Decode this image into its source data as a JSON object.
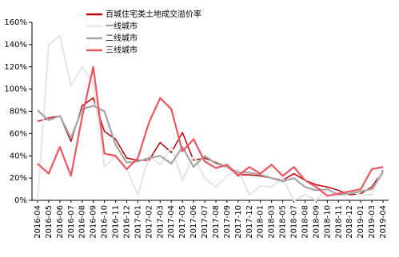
{
  "chart_data": {
    "type": "line",
    "categories": [
      "2016-04",
      "2016-05",
      "2016-06",
      "2016-07",
      "2016-08",
      "2016-09",
      "2016-10",
      "2016-11",
      "2016-12",
      "2017-01",
      "2017-02",
      "2017-03",
      "2017-04",
      "2017-05",
      "2017-06",
      "2017-07",
      "2017-08",
      "2017-09",
      "2017-10",
      "2017-12",
      "2018-01",
      "2018-03",
      "2018-05",
      "2018-07",
      "2018-08",
      "2018-09",
      "2018-10",
      "2018-11",
      "2018-12",
      "2019-01",
      "2019-03",
      "2019-04"
    ],
    "series": [
      {
        "name": "百城住宅类土地成交溢价率",
        "color": "#c00000",
        "values": [
          71,
          74,
          76,
          53,
          85,
          92,
          62,
          55,
          38,
          36,
          36,
          52,
          43,
          61,
          36,
          38,
          34,
          30,
          23,
          23,
          22,
          20,
          18,
          24,
          18,
          14,
          12,
          9,
          5,
          6,
          12,
          27
        ]
      },
      {
        "name": "一线城市",
        "color": "#e6e6e6",
        "values": [
          0,
          140,
          148,
          103,
          120,
          105,
          30,
          40,
          28,
          5,
          40,
          32,
          48,
          18,
          40,
          20,
          12,
          22,
          28,
          5,
          13,
          12,
          20,
          0,
          5,
          0,
          10,
          5,
          8,
          5,
          5,
          30
        ]
      },
      {
        "name": "二线城市",
        "color": "#a6a6a6",
        "values": [
          81,
          72,
          76,
          56,
          82,
          85,
          80,
          50,
          34,
          35,
          38,
          40,
          33,
          48,
          30,
          40,
          33,
          30,
          25,
          25,
          23,
          20,
          17,
          20,
          12,
          9,
          10,
          5,
          6,
          8,
          10,
          25
        ]
      },
      {
        "name": "三线城市",
        "color": "#f0555f",
        "values": [
          33,
          24,
          48,
          22,
          75,
          120,
          42,
          40,
          28,
          38,
          70,
          92,
          82,
          44,
          55,
          35,
          29,
          32,
          22,
          30,
          24,
          32,
          22,
          30,
          18,
          12,
          4,
          6,
          8,
          10,
          28,
          30
        ]
      }
    ],
    "ylim": [
      0,
      160
    ],
    "yticks": [
      {
        "value": 0,
        "label": "0%"
      },
      {
        "value": 20,
        "label": "20%"
      },
      {
        "value": 40,
        "label": "40%"
      },
      {
        "value": 60,
        "label": "60%"
      },
      {
        "value": 80,
        "label": "80%"
      },
      {
        "value": 100,
        "label": "100%"
      },
      {
        "value": 120,
        "label": "120%"
      },
      {
        "value": 140,
        "label": "140%"
      },
      {
        "value": 160,
        "label": "160%"
      }
    ],
    "legend": "upper-left"
  }
}
